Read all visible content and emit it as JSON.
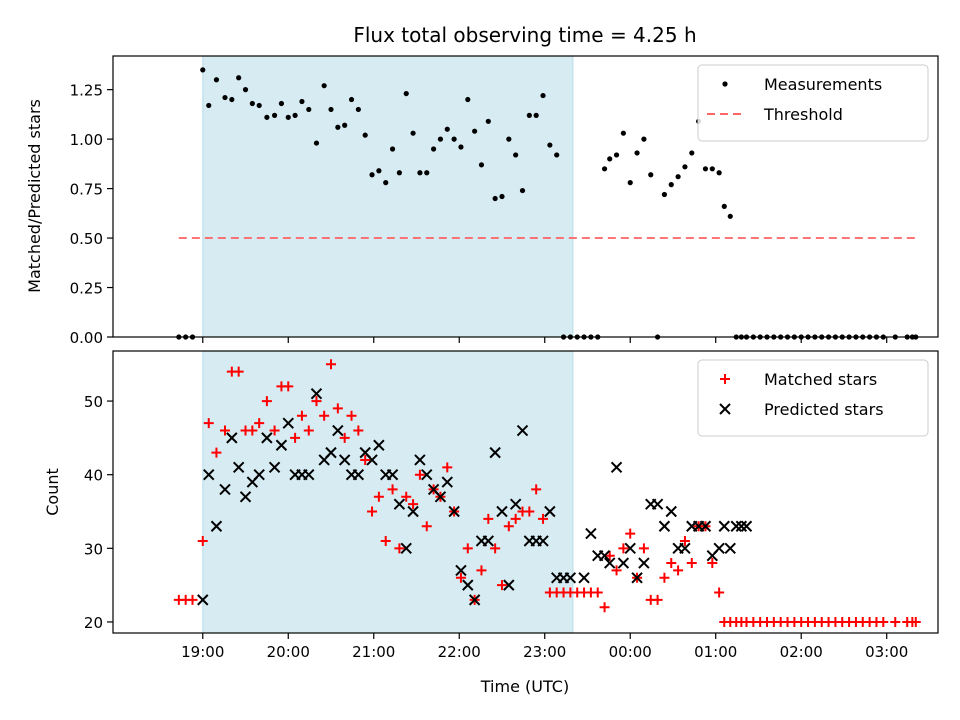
{
  "chart_data": [
    {
      "type": "scatter",
      "title": "Flux total observing time = 4.25 h",
      "xlabel": "",
      "ylabel": "Matched/Predicted stars",
      "xlim": [
        -1.05,
        8.6
      ],
      "ylim": [
        0,
        1.42
      ],
      "x_tick_labels": [
        "19:00",
        "20:00",
        "21:00",
        "22:00",
        "23:00",
        "00:00",
        "01:00",
        "02:00",
        "03:00"
      ],
      "x_tick_values": [
        0,
        1,
        2,
        3,
        4,
        5,
        6,
        7,
        8
      ],
      "y_ticks": [
        0.0,
        0.25,
        0.5,
        0.75,
        1.0,
        1.25
      ],
      "y_tick_labels": [
        "0.00",
        "0.25",
        "0.50",
        "0.75",
        "1.00",
        "1.25"
      ],
      "shaded_span": {
        "x": [
          0.0,
          4.33
        ],
        "color": "#add8e6"
      },
      "legend": {
        "placement": "top-right",
        "entries": [
          "Measurements",
          "Threshold"
        ]
      },
      "threshold": {
        "name": "Threshold",
        "y": 0.5,
        "x": [
          -0.28,
          8.33
        ],
        "color": "#ff6666"
      },
      "series": [
        {
          "name": "Measurements",
          "color": "#000000",
          "x": [
            -0.28,
            -0.2,
            -0.12,
            0.0,
            0.07,
            0.16,
            0.26,
            0.34,
            0.42,
            0.5,
            0.58,
            0.66,
            0.75,
            0.84,
            0.92,
            1.0,
            1.08,
            1.16,
            1.24,
            1.33,
            1.42,
            1.5,
            1.58,
            1.66,
            1.74,
            1.82,
            1.9,
            1.98,
            2.06,
            2.14,
            2.22,
            2.3,
            2.38,
            2.46,
            2.54,
            2.62,
            2.7,
            2.78,
            2.86,
            2.94,
            3.02,
            3.1,
            3.18,
            3.26,
            3.34,
            3.42,
            3.5,
            3.58,
            3.66,
            3.74,
            3.82,
            3.9,
            3.98,
            4.06,
            4.14,
            4.22,
            4.3,
            4.38,
            4.46,
            4.54,
            4.62,
            4.7,
            4.76,
            4.84,
            4.92,
            5.0,
            5.08,
            5.16,
            5.24,
            5.32,
            5.4,
            5.48,
            5.56,
            5.64,
            5.72,
            5.8,
            5.88,
            5.96,
            6.04,
            6.1,
            6.17,
            6.24,
            6.3,
            6.36,
            6.44,
            6.52,
            6.6,
            6.68,
            6.76,
            6.84,
            6.92,
            7.0,
            7.08,
            7.16,
            7.24,
            7.32,
            7.4,
            7.48,
            7.56,
            7.64,
            7.72,
            7.8,
            7.88,
            7.96,
            8.1,
            8.24,
            8.3,
            8.34
          ],
          "y": [
            0.0,
            0.0,
            0.0,
            1.35,
            1.17,
            1.3,
            1.21,
            1.2,
            1.31,
            1.25,
            1.18,
            1.17,
            1.11,
            1.12,
            1.18,
            1.11,
            1.12,
            1.19,
            1.15,
            0.98,
            1.27,
            1.15,
            1.06,
            1.07,
            1.2,
            1.15,
            1.02,
            0.82,
            0.84,
            0.78,
            0.95,
            0.83,
            1.23,
            1.03,
            0.83,
            0.83,
            0.95,
            1.0,
            1.05,
            1.0,
            0.96,
            1.2,
            1.04,
            0.87,
            1.09,
            0.7,
            0.71,
            1.0,
            0.92,
            0.74,
            1.12,
            1.12,
            1.22,
            0.97,
            0.92,
            0.0,
            0.0,
            0.0,
            0.0,
            0.0,
            0.0,
            0.85,
            0.9,
            0.92,
            1.03,
            0.78,
            0.93,
            1.0,
            0.82,
            0.0,
            0.72,
            0.77,
            0.81,
            0.86,
            0.93,
            1.09,
            0.85,
            0.85,
            0.83,
            0.66,
            0.61,
            0.0,
            0.0,
            0.0,
            0.0,
            0.0,
            0.0,
            0.0,
            0.0,
            0.0,
            0.0,
            0.0,
            0.0,
            0.0,
            0.0,
            0.0,
            0.0,
            0.0,
            0.0,
            0.0,
            0.0,
            0.0,
            0.0,
            0.0,
            0.0,
            0.0,
            0.0,
            0.0
          ]
        }
      ]
    },
    {
      "type": "scatter",
      "title": "",
      "xlabel": "Time (UTC)",
      "ylabel": "Count",
      "xlim": [
        -1.05,
        8.6
      ],
      "ylim": [
        18.5,
        56.8
      ],
      "x_tick_labels": [
        "19:00",
        "20:00",
        "21:00",
        "22:00",
        "23:00",
        "00:00",
        "01:00",
        "02:00",
        "03:00"
      ],
      "x_tick_values": [
        0,
        1,
        2,
        3,
        4,
        5,
        6,
        7,
        8
      ],
      "y_ticks": [
        20,
        30,
        40,
        50
      ],
      "y_tick_labels": [
        "20",
        "30",
        "40",
        "50"
      ],
      "shaded_span": {
        "x": [
          0.0,
          4.33
        ],
        "color": "#add8e6"
      },
      "legend": {
        "placement": "top-right",
        "entries": [
          "Matched stars",
          "Predicted stars"
        ]
      },
      "series": [
        {
          "name": "Matched stars",
          "marker": "plus",
          "color": "#ff0000",
          "x": [
            -0.28,
            -0.2,
            -0.12,
            0.0,
            0.07,
            0.16,
            0.26,
            0.34,
            0.42,
            0.5,
            0.58,
            0.66,
            0.75,
            0.84,
            0.92,
            1.0,
            1.08,
            1.16,
            1.24,
            1.33,
            1.42,
            1.5,
            1.58,
            1.66,
            1.74,
            1.82,
            1.9,
            1.98,
            2.06,
            2.14,
            2.22,
            2.3,
            2.38,
            2.46,
            2.54,
            2.62,
            2.7,
            2.78,
            2.86,
            2.94,
            3.02,
            3.1,
            3.18,
            3.26,
            3.34,
            3.42,
            3.5,
            3.58,
            3.66,
            3.74,
            3.82,
            3.9,
            3.98,
            4.06,
            4.14,
            4.22,
            4.3,
            4.38,
            4.46,
            4.54,
            4.62,
            4.7,
            4.76,
            4.84,
            4.92,
            5.0,
            5.08,
            5.16,
            5.24,
            5.32,
            5.4,
            5.48,
            5.56,
            5.64,
            5.72,
            5.8,
            5.88,
            5.96,
            6.04,
            6.1,
            6.17,
            6.24,
            6.3,
            6.36,
            6.44,
            6.52,
            6.6,
            6.68,
            6.76,
            6.84,
            6.92,
            7.0,
            7.08,
            7.16,
            7.24,
            7.32,
            7.4,
            7.48,
            7.56,
            7.64,
            7.72,
            7.8,
            7.88,
            7.96,
            8.1,
            8.24,
            8.3,
            8.34
          ],
          "y": [
            23,
            23,
            23,
            31,
            47,
            43,
            46,
            54,
            54,
            46,
            46,
            47,
            50,
            46,
            52,
            52,
            45,
            48,
            46,
            50,
            48,
            55,
            49,
            45,
            48,
            46,
            42,
            35,
            37,
            31,
            38,
            30,
            37,
            36,
            40,
            33,
            38,
            37,
            41,
            35,
            26,
            30,
            23,
            27,
            34,
            30,
            25,
            33,
            34,
            35,
            35,
            38,
            34,
            24,
            24,
            24,
            24,
            24,
            24,
            24,
            24,
            22,
            29,
            27,
            30,
            32,
            26,
            30,
            23,
            23,
            26,
            28,
            27,
            31,
            28,
            33,
            33,
            28,
            24,
            20,
            20,
            20,
            20,
            20,
            20,
            20,
            20,
            20,
            20,
            20,
            20,
            20,
            20,
            20,
            20,
            20,
            20,
            20,
            20,
            20,
            20,
            20,
            20,
            20,
            20,
            20,
            20,
            20
          ]
        },
        {
          "name": "Predicted stars",
          "marker": "x",
          "color": "#000000",
          "x": [
            0.0,
            0.07,
            0.16,
            0.26,
            0.34,
            0.42,
            0.5,
            0.58,
            0.66,
            0.75,
            0.84,
            0.92,
            1.0,
            1.08,
            1.16,
            1.24,
            1.33,
            1.42,
            1.5,
            1.58,
            1.66,
            1.74,
            1.82,
            1.9,
            1.98,
            2.06,
            2.14,
            2.22,
            2.3,
            2.38,
            2.46,
            2.54,
            2.62,
            2.7,
            2.78,
            2.86,
            2.94,
            3.02,
            3.1,
            3.18,
            3.26,
            3.34,
            3.42,
            3.5,
            3.58,
            3.66,
            3.74,
            3.82,
            3.9,
            3.98,
            4.06,
            4.14,
            4.22,
            4.3,
            4.46,
            4.54,
            4.62,
            4.7,
            4.76,
            4.84,
            4.92,
            5.0,
            5.08,
            5.16,
            5.24,
            5.32,
            5.4,
            5.48,
            5.56,
            5.64,
            5.72,
            5.8,
            5.88,
            5.96,
            6.04,
            6.1,
            6.17,
            6.24,
            6.3,
            6.36
          ],
          "y": [
            23,
            40,
            33,
            38,
            45,
            41,
            37,
            39,
            40,
            45,
            41,
            44,
            47,
            40,
            40,
            40,
            51,
            42,
            43,
            46,
            42,
            40,
            40,
            43,
            42,
            44,
            40,
            40,
            36,
            30,
            35,
            42,
            40,
            38,
            37,
            39,
            35,
            27,
            25,
            23,
            31,
            31,
            43,
            35,
            25,
            36,
            46,
            31,
            31,
            31,
            35,
            26,
            26,
            26,
            26,
            32,
            29,
            29,
            28,
            41,
            28,
            30,
            26,
            28,
            36,
            36,
            33,
            35,
            30,
            30,
            33,
            33,
            33,
            29,
            30,
            33,
            30,
            33,
            33,
            33
          ]
        }
      ]
    }
  ]
}
